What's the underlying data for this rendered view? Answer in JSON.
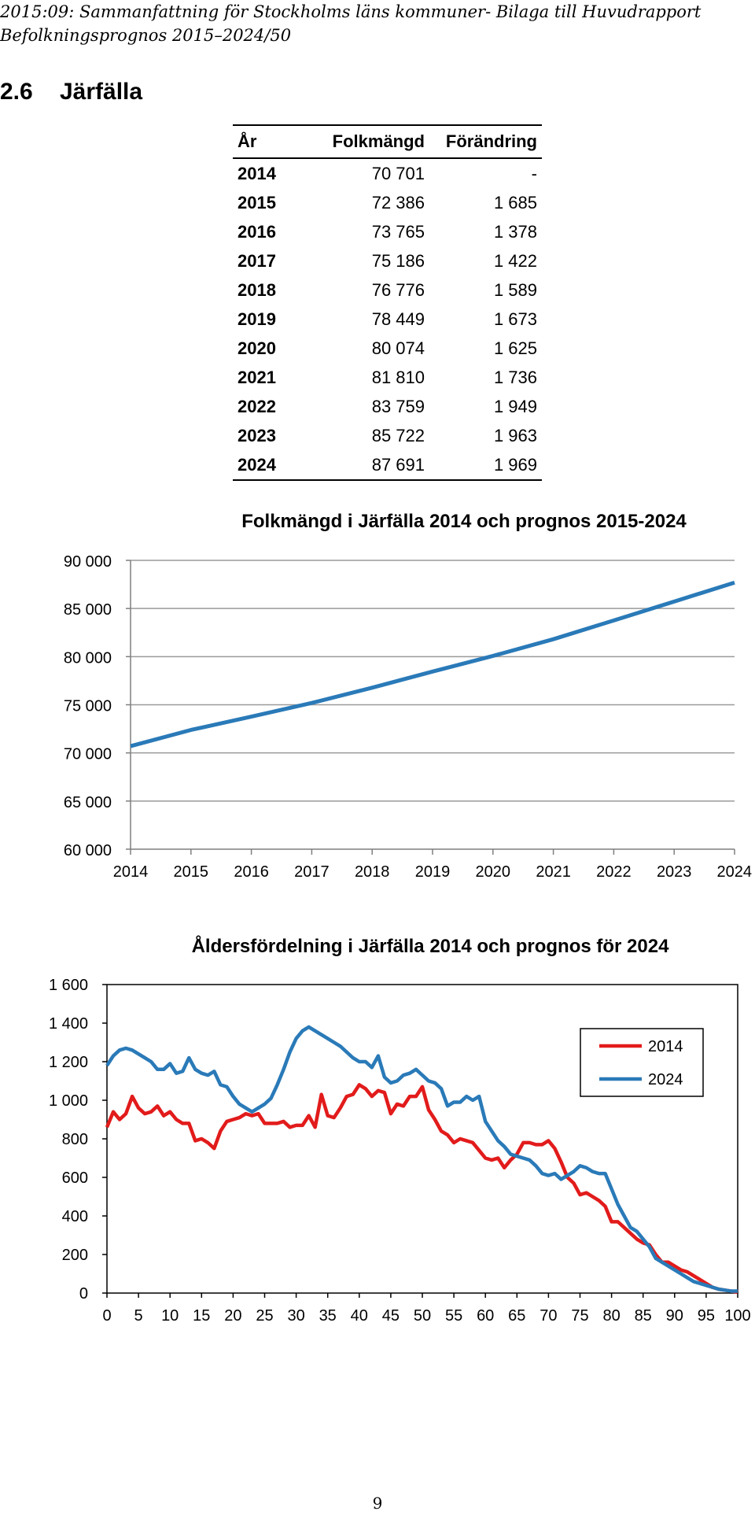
{
  "header": {
    "line1": "2015:09: Sammanfattning för Stockholms läns kommuner- Bilaga till Huvudrapport",
    "line2": "Befolkningsprognos 2015–2024/50"
  },
  "section": {
    "number": "2.6",
    "title": "Järfälla"
  },
  "table": {
    "headers": [
      "År",
      "Folkmängd",
      "Förändring"
    ],
    "rows": [
      [
        "2014",
        "70 701",
        "-"
      ],
      [
        "2015",
        "72 386",
        "1 685"
      ],
      [
        "2016",
        "73 765",
        "1 378"
      ],
      [
        "2017",
        "75 186",
        "1 422"
      ],
      [
        "2018",
        "76 776",
        "1 589"
      ],
      [
        "2019",
        "78 449",
        "1 673"
      ],
      [
        "2020",
        "80 074",
        "1 625"
      ],
      [
        "2021",
        "81 810",
        "1 736"
      ],
      [
        "2022",
        "83 759",
        "1 949"
      ],
      [
        "2023",
        "85 722",
        "1 963"
      ],
      [
        "2024",
        "87 691",
        "1 969"
      ]
    ]
  },
  "chart_data": [
    {
      "type": "line",
      "title": "Folkmängd i Järfälla 2014 och prognos 2015-2024",
      "xlabel": "",
      "ylabel": "",
      "x": [
        2014,
        2015,
        2016,
        2017,
        2018,
        2019,
        2020,
        2021,
        2022,
        2023,
        2024
      ],
      "x_tick_labels": [
        "2014",
        "2015",
        "2016",
        "2017",
        "2018",
        "2019",
        "2020",
        "2021",
        "2022",
        "2023",
        "2024"
      ],
      "y_ticks": [
        60000,
        65000,
        70000,
        75000,
        80000,
        85000,
        90000
      ],
      "y_tick_labels": [
        "60 000",
        "65 000",
        "70 000",
        "75 000",
        "80 000",
        "85 000",
        "90 000"
      ],
      "ylim": [
        60000,
        90000
      ],
      "grid": true,
      "legend": "none",
      "series": [
        {
          "values": [
            70701,
            72386,
            73765,
            75186,
            76776,
            78449,
            80074,
            81810,
            83759,
            85722,
            87691
          ],
          "color": "#2a7ab8"
        }
      ]
    },
    {
      "type": "line",
      "title": "Åldersfördelning i Järfälla 2014 och prognos för 2024",
      "xlabel": "",
      "ylabel": "",
      "x_ticks": [
        0,
        5,
        10,
        15,
        20,
        25,
        30,
        35,
        40,
        45,
        50,
        55,
        60,
        65,
        70,
        75,
        80,
        85,
        90,
        95,
        100
      ],
      "x_tick_labels": [
        "0",
        "5",
        "10",
        "15",
        "20",
        "25",
        "30",
        "35",
        "40",
        "45",
        "50",
        "55",
        "60",
        "65",
        "70",
        "75",
        "80",
        "85",
        "90",
        "95",
        "100"
      ],
      "y_ticks": [
        0,
        200,
        400,
        600,
        800,
        1000,
        1200,
        1400,
        1600
      ],
      "y_tick_labels": [
        "0",
        "200",
        "400",
        "600",
        "800",
        "1 000",
        "1 200",
        "1 400",
        "1 600"
      ],
      "xlim": [
        0,
        100
      ],
      "ylim": [
        0,
        1600
      ],
      "grid": false,
      "legend": "top-right",
      "series": [
        {
          "name": "2014",
          "color": "#e21b1b",
          "x": [
            0,
            1,
            2,
            3,
            4,
            5,
            6,
            7,
            8,
            9,
            10,
            11,
            12,
            13,
            14,
            15,
            16,
            17,
            18,
            19,
            20,
            21,
            22,
            23,
            24,
            25,
            26,
            27,
            28,
            29,
            30,
            31,
            32,
            33,
            34,
            35,
            36,
            37,
            38,
            39,
            40,
            41,
            42,
            43,
            44,
            45,
            46,
            47,
            48,
            49,
            50,
            51,
            52,
            53,
            54,
            55,
            56,
            57,
            58,
            59,
            60,
            61,
            62,
            63,
            64,
            65,
            66,
            67,
            68,
            69,
            70,
            71,
            72,
            73,
            74,
            75,
            76,
            77,
            78,
            79,
            80,
            81,
            82,
            83,
            84,
            85,
            86,
            87,
            88,
            89,
            90,
            91,
            92,
            93,
            94,
            95,
            96,
            97,
            98,
            99,
            100
          ],
          "values": [
            860,
            940,
            900,
            930,
            1020,
            960,
            930,
            940,
            970,
            920,
            940,
            900,
            880,
            880,
            790,
            800,
            780,
            750,
            840,
            890,
            900,
            910,
            930,
            920,
            930,
            880,
            880,
            880,
            890,
            860,
            870,
            870,
            920,
            860,
            1030,
            920,
            910,
            960,
            1020,
            1030,
            1080,
            1060,
            1020,
            1050,
            1040,
            930,
            980,
            970,
            1020,
            1020,
            1070,
            950,
            900,
            840,
            820,
            780,
            800,
            790,
            780,
            740,
            700,
            690,
            700,
            650,
            690,
            720,
            780,
            780,
            770,
            770,
            790,
            750,
            680,
            600,
            570,
            510,
            520,
            500,
            480,
            450,
            370,
            370,
            340,
            310,
            280,
            260,
            250,
            200,
            160,
            160,
            140,
            120,
            110,
            90,
            70,
            50,
            30,
            20,
            15,
            10,
            5
          ]
        },
        {
          "name": "2024",
          "color": "#2a7ab8",
          "x": [
            0,
            1,
            2,
            3,
            4,
            5,
            6,
            7,
            8,
            9,
            10,
            11,
            12,
            13,
            14,
            15,
            16,
            17,
            18,
            19,
            20,
            21,
            22,
            23,
            24,
            25,
            26,
            27,
            28,
            29,
            30,
            31,
            32,
            33,
            34,
            35,
            36,
            37,
            38,
            39,
            40,
            41,
            42,
            43,
            44,
            45,
            46,
            47,
            48,
            49,
            50,
            51,
            52,
            53,
            54,
            55,
            56,
            57,
            58,
            59,
            60,
            61,
            62,
            63,
            64,
            65,
            66,
            67,
            68,
            69,
            70,
            71,
            72,
            73,
            74,
            75,
            76,
            77,
            78,
            79,
            80,
            81,
            82,
            83,
            84,
            85,
            86,
            87,
            88,
            89,
            90,
            91,
            92,
            93,
            94,
            95,
            96,
            97,
            98,
            99,
            100
          ],
          "values": [
            1180,
            1230,
            1260,
            1270,
            1260,
            1240,
            1220,
            1200,
            1160,
            1160,
            1190,
            1140,
            1150,
            1220,
            1160,
            1140,
            1130,
            1150,
            1080,
            1070,
            1020,
            980,
            960,
            940,
            960,
            980,
            1010,
            1080,
            1160,
            1250,
            1320,
            1360,
            1380,
            1360,
            1340,
            1320,
            1300,
            1280,
            1250,
            1220,
            1200,
            1200,
            1170,
            1230,
            1120,
            1090,
            1100,
            1130,
            1140,
            1160,
            1130,
            1100,
            1090,
            1060,
            970,
            990,
            990,
            1020,
            1000,
            1020,
            890,
            840,
            790,
            760,
            720,
            710,
            700,
            690,
            660,
            620,
            610,
            620,
            590,
            610,
            630,
            660,
            650,
            630,
            620,
            620,
            540,
            460,
            400,
            340,
            320,
            280,
            240,
            180,
            160,
            140,
            120,
            100,
            80,
            60,
            50,
            40,
            30,
            20,
            15,
            10,
            10
          ]
        }
      ]
    }
  ],
  "page_number": "9"
}
